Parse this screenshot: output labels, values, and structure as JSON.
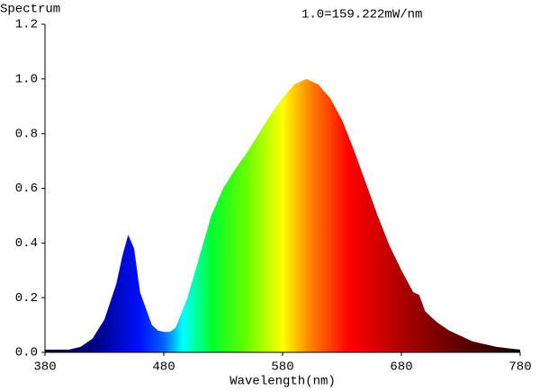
{
  "chart_data": {
    "type": "area",
    "title": "Spectrum",
    "annotation": "1.0=159.222mW/nm",
    "x_label": "Wavelength(nm)",
    "x": [
      380,
      390,
      400,
      410,
      420,
      430,
      440,
      445,
      450,
      455,
      460,
      470,
      475,
      480,
      485,
      490,
      500,
      510,
      520,
      530,
      540,
      550,
      560,
      570,
      580,
      590,
      600,
      610,
      620,
      630,
      640,
      650,
      660,
      670,
      680,
      690,
      695,
      700,
      710,
      720,
      730,
      740,
      750,
      760,
      770,
      780
    ],
    "y": [
      0.01,
      0.01,
      0.01,
      0.02,
      0.05,
      0.12,
      0.25,
      0.35,
      0.43,
      0.38,
      0.22,
      0.1,
      0.08,
      0.075,
      0.075,
      0.09,
      0.2,
      0.35,
      0.5,
      0.6,
      0.67,
      0.73,
      0.8,
      0.87,
      0.93,
      0.98,
      1.0,
      0.98,
      0.93,
      0.85,
      0.74,
      0.62,
      0.5,
      0.39,
      0.3,
      0.22,
      0.21,
      0.15,
      0.11,
      0.08,
      0.06,
      0.04,
      0.03,
      0.02,
      0.015,
      0.01
    ],
    "xlim": [
      380,
      780
    ],
    "xticks": [
      380,
      480,
      580,
      680,
      780
    ],
    "ylim": [
      0,
      1.2
    ],
    "yticks": [
      {
        "value": 0,
        "label": "0.0"
      },
      0.2,
      0.4,
      0.6,
      0.8,
      {
        "value": 1,
        "label": "1.0"
      },
      1.2
    ]
  }
}
